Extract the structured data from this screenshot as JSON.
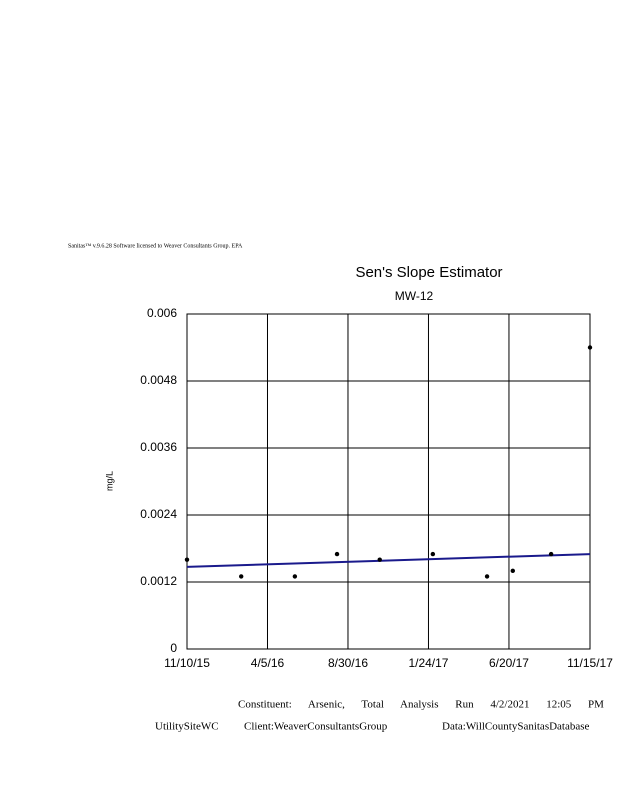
{
  "chart_data": {
    "type": "scatter",
    "header": "Sanitas™ v.9.6.28 Software licensed to Weaver Consultants Group. EPA",
    "title": "Sen's Slope Estimator",
    "subtitle": "MW-12",
    "ylabel": "mg/L",
    "x": [
      "11/10/15",
      "2/17/16",
      "5/25/16",
      "8/10/16",
      "10/27/16",
      "2/1/17",
      "5/11/17",
      "6/27/17",
      "9/5/17",
      "11/15/17"
    ],
    "values": [
      0.0016,
      0.0013,
      0.0013,
      0.0017,
      0.0016,
      0.0017,
      0.0013,
      0.0014,
      0.0017,
      0.0054
    ],
    "color": "#000000",
    "trend": {
      "x": [
        "11/10/15",
        "11/15/17"
      ],
      "values": [
        0.00147,
        0.0017
      ],
      "color": "#1a1a8c"
    },
    "xlim": [
      "11/10/15",
      "11/15/17"
    ],
    "xticks": [
      "11/10/15",
      "4/5/16",
      "8/30/16",
      "1/24/17",
      "6/20/17",
      "11/15/17"
    ],
    "ylim": [
      0,
      0.006
    ],
    "yticks": [
      0,
      0.0012,
      0.0024,
      0.0036,
      0.0048,
      0.006
    ],
    "grid": true,
    "footer": [
      "Constituent: Arsenic, Total Analysis Run 4/2/2021 12:05 PM",
      "UtilitySiteWC",
      "Client:WeaverConsultantsGroup",
      "Data:WillCountySanitasDatabase"
    ]
  }
}
